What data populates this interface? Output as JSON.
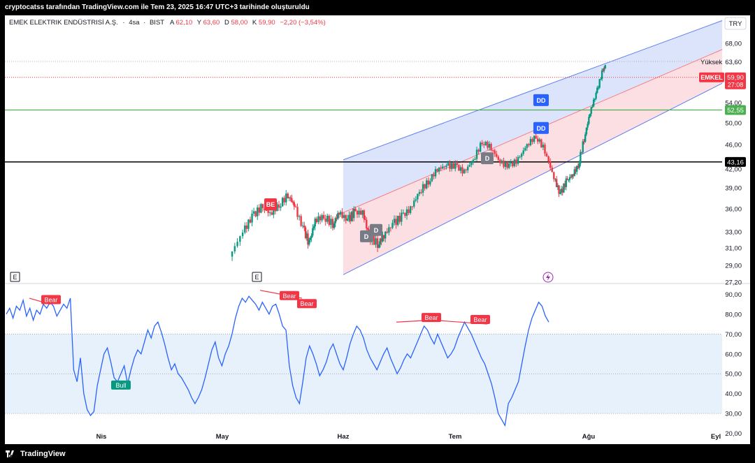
{
  "header": {
    "title": "cryptocatss tarafından TradingView.com ile Tem 23, 2025 16:47 UTC+3 tarihinde oluşturuldu"
  },
  "footer": {
    "brand": "TradingView"
  },
  "legend": {
    "name": "EMEK ELEKTRIK ENDÜSTRISİ A.Ş.",
    "interval": "4sa",
    "exchange": "BIST",
    "open_label": "A",
    "open": "62,10",
    "high_label": "Y",
    "high": "63,60",
    "low_label": "D",
    "low": "58,00",
    "close_label": "K",
    "close": "59,90",
    "change": "−2,20 (−3,54%)"
  },
  "currency_label": "TRY",
  "colors": {
    "up": "#089981",
    "down": "#f23645",
    "channel_line": "#5b7ff0",
    "channel_fill_top": "#dbe4fb",
    "channel_fill_bottom": "#fcdfe2",
    "green_line": "#4caf50",
    "black_line": "#000000",
    "rsi_line": "#2962ff",
    "rsi_band": "#e7f1fb",
    "dd_badge": "#2962ff",
    "d_badge": "#787b86"
  },
  "chart_data": [
    {
      "type": "candlestick",
      "symbol": "EMKEL",
      "ylim": [
        27.2,
        74.0
      ],
      "y_ticks": [
        "27,20",
        "29,00",
        "31,00",
        "33,00",
        "36,00",
        "39,00",
        "42,00",
        "46,00",
        "50,00",
        "54,00",
        "63,60",
        "68,00"
      ],
      "x_ticks": [
        "Nis",
        "May",
        "Haz",
        "Tem",
        "Ağu",
        "Eyl"
      ],
      "high_line": {
        "label": "Yüksek",
        "value": "63,60"
      },
      "last_price": {
        "symbol": "EMKEL",
        "value": "59,90",
        "countdown": "27:08"
      },
      "horizontal_levels": [
        {
          "value": "52,55",
          "color": "green"
        },
        {
          "value": "43,16",
          "color": "black"
        }
      ],
      "channel": {
        "start": "Haz",
        "top_at_start": 43.5,
        "top_at_end": 73.5,
        "bottom_at_start": 28.0,
        "bottom_at_end": 58.5,
        "mid_at_start": 35.5,
        "mid_at_end": 66.5
      },
      "signal_labels": [
        {
          "text": "BE",
          "value": 36.6
        },
        {
          "text": "D",
          "value": 32.4
        },
        {
          "text": "D",
          "value": 33.2
        },
        {
          "text": "D",
          "value": 43.7
        },
        {
          "text": "DD",
          "value": 54.5
        },
        {
          "text": "DD",
          "value": 49.0
        }
      ],
      "markers": [
        {
          "text": "E"
        },
        {
          "text": "E"
        }
      ],
      "price_path": [
        {
          "t": 0.378,
          "v": 30.0
        },
        {
          "t": 0.4,
          "v": 33.0
        },
        {
          "t": 0.415,
          "v": 35.0
        },
        {
          "t": 0.43,
          "v": 36.2
        },
        {
          "t": 0.445,
          "v": 35.4
        },
        {
          "t": 0.46,
          "v": 36.5
        },
        {
          "t": 0.475,
          "v": 38.0
        },
        {
          "t": 0.485,
          "v": 36.5
        },
        {
          "t": 0.5,
          "v": 33.5
        },
        {
          "t": 0.51,
          "v": 31.5
        },
        {
          "t": 0.52,
          "v": 34.5
        },
        {
          "t": 0.535,
          "v": 35.0
        },
        {
          "t": 0.55,
          "v": 34.0
        },
        {
          "t": 0.56,
          "v": 35.5
        },
        {
          "t": 0.575,
          "v": 34.5
        },
        {
          "t": 0.585,
          "v": 35.5
        },
        {
          "t": 0.6,
          "v": 35.5
        },
        {
          "t": 0.61,
          "v": 32.5
        },
        {
          "t": 0.625,
          "v": 31.5
        },
        {
          "t": 0.635,
          "v": 32.5
        },
        {
          "t": 0.65,
          "v": 34.0
        },
        {
          "t": 0.665,
          "v": 35.0
        },
        {
          "t": 0.68,
          "v": 36.0
        },
        {
          "t": 0.695,
          "v": 38.5
        },
        {
          "t": 0.71,
          "v": 40.0
        },
        {
          "t": 0.725,
          "v": 42.0
        },
        {
          "t": 0.74,
          "v": 42.5
        },
        {
          "t": 0.755,
          "v": 42.5
        },
        {
          "t": 0.77,
          "v": 41.5
        },
        {
          "t": 0.785,
          "v": 43.5
        },
        {
          "t": 0.8,
          "v": 46.5
        },
        {
          "t": 0.815,
          "v": 45.5
        },
        {
          "t": 0.83,
          "v": 43.0
        },
        {
          "t": 0.845,
          "v": 42.5
        },
        {
          "t": 0.86,
          "v": 43.5
        },
        {
          "t": 0.875,
          "v": 46.0
        },
        {
          "t": 0.89,
          "v": 47.5
        },
        {
          "t": 0.905,
          "v": 45.0
        },
        {
          "t": 0.92,
          "v": 40.5
        },
        {
          "t": 0.93,
          "v": 38.0
        },
        {
          "t": 0.94,
          "v": 40.0
        },
        {
          "t": 0.95,
          "v": 41.0
        },
        {
          "t": 0.96,
          "v": 42.5
        },
        {
          "t": 0.97,
          "v": 47.0
        },
        {
          "t": 0.98,
          "v": 52.0
        },
        {
          "t": 0.99,
          "v": 56.0
        },
        {
          "t": 1.0,
          "v": 61.0
        },
        {
          "t": 1.005,
          "v": 62.5
        }
      ]
    },
    {
      "type": "line",
      "indicator": "RSI",
      "ylim": [
        16.0,
        94.0
      ],
      "y_ticks": [
        "20,00",
        "30,00",
        "40,00",
        "50,00",
        "60,00",
        "70,00",
        "80,00",
        "90,00"
      ],
      "band": [
        30,
        70
      ],
      "midline": 50,
      "divergence_labels": [
        {
          "text": "Bear",
          "value": 87.5
        },
        {
          "text": "Bear",
          "value": 89.5
        },
        {
          "text": "Bear",
          "value": 85.5
        },
        {
          "text": "Bear",
          "value": 78.5
        },
        {
          "text": "Bear",
          "value": 77.5
        },
        {
          "text": "Bull",
          "value": 44.5
        }
      ],
      "values": [
        80,
        83,
        78,
        84,
        82,
        87,
        79,
        83,
        77,
        82,
        80,
        85,
        83,
        86,
        84,
        79,
        82,
        85,
        83,
        88,
        52,
        46,
        58,
        40,
        32,
        29,
        31,
        44,
        52,
        60,
        63,
        56,
        48,
        46,
        50,
        54,
        45,
        52,
        58,
        62,
        60,
        66,
        72,
        68,
        74,
        76,
        71,
        65,
        58,
        52,
        55,
        50,
        48,
        45,
        42,
        38,
        35,
        38,
        42,
        48,
        55,
        62,
        66,
        58,
        54,
        60,
        64,
        70,
        78,
        84,
        88,
        86,
        89,
        87,
        85,
        82,
        86,
        83,
        80,
        84,
        85,
        80,
        74,
        72,
        54,
        44,
        38,
        35,
        46,
        58,
        64,
        60,
        55,
        49,
        52,
        56,
        62,
        65,
        60,
        55,
        52,
        58,
        65,
        70,
        74,
        72,
        68,
        62,
        58,
        55,
        52,
        56,
        60,
        63,
        58,
        54,
        50,
        53,
        57,
        60,
        58,
        62,
        66,
        70,
        74,
        72,
        68,
        65,
        70,
        66,
        62,
        58,
        60,
        63,
        68,
        72,
        76,
        73,
        70,
        66,
        62,
        58,
        55,
        50,
        45,
        38,
        30,
        27,
        24,
        35,
        38,
        42,
        46,
        55,
        64,
        72,
        78,
        82,
        86,
        84,
        79,
        76
      ]
    }
  ]
}
